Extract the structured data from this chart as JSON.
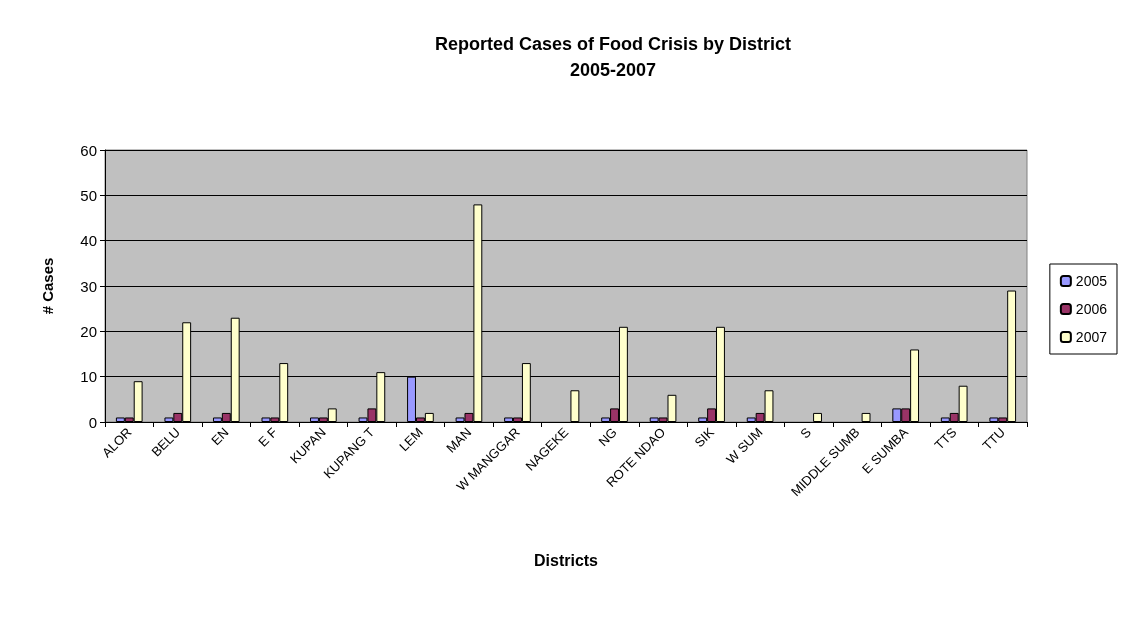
{
  "chart_data": {
    "type": "bar",
    "title": "Reported Cases of Food Crisis by District",
    "subtitle": "2005-2007",
    "xlabel": "Districts",
    "ylabel": "# Cases",
    "categories": [
      "ALOR",
      "BELU",
      "EN",
      "E F",
      "KUPAN",
      "KUPANG T",
      "LEM",
      "MAN",
      "W MANGGAR",
      "NAGEKE",
      "NG",
      "ROTE NDAO",
      "SIK",
      "W SUM",
      "S",
      "MIDDLE SUMB",
      "E SUMBA",
      "TTS",
      "TTU"
    ],
    "series": [
      {
        "name": "2005",
        "color": "#9999ff",
        "values": [
          1,
          1,
          1,
          1,
          1,
          1,
          10,
          1,
          1,
          null,
          1,
          1,
          1,
          1,
          null,
          null,
          3,
          1,
          1
        ]
      },
      {
        "name": "2006",
        "color": "#993366",
        "values": [
          1,
          2,
          2,
          1,
          1,
          3,
          1,
          2,
          1,
          null,
          3,
          1,
          3,
          2,
          null,
          null,
          3,
          2,
          1
        ]
      },
      {
        "name": "2007",
        "color": "#ffffcc",
        "values": [
          9,
          22,
          23,
          13,
          3,
          11,
          2,
          48,
          13,
          7,
          21,
          6,
          21,
          7,
          2,
          2,
          16,
          8,
          29
        ]
      }
    ],
    "ylim": [
      0,
      60
    ],
    "yticks": [
      0,
      10,
      20,
      30,
      40,
      50,
      60
    ],
    "grid": "y",
    "legend": "right"
  }
}
